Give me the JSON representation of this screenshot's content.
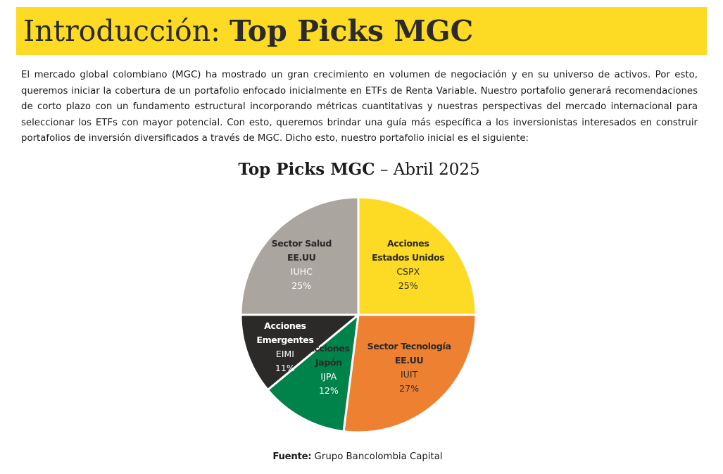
{
  "header": {
    "title_light": "Introducción:",
    "title_bold": "Top Picks MGC"
  },
  "intro_text": "El mercado global colombiano (MGC) ha mostrado un gran crecimiento en volumen de negociación y en su universo de activos. Por esto, queremos iniciar la cobertura de un portafolio enfocado inicialmente en ETFs de Renta Variable. Nuestro portafolio generará recomendaciones de corto plazo con un fundamento estructural incorporando métricas cuantitativas y nuestras perspectivas del mercado internacional para seleccionar los ETFs con mayor potencial. Con esto, queremos brindar una guía más específica a los inversionistas interesados en construir portafolios de inversión diversificados a través de MGC. Dicho esto, nuestro portafolio inicial es el siguiente:",
  "chart_data": {
    "type": "pie",
    "title_bold": "Top Picks MGC",
    "title_light": " – Abril 2025",
    "slices": [
      {
        "name_lines": [
          "Acciones",
          "Estados Unidos"
        ],
        "ticker": "CSPX",
        "value": 25,
        "value_label": "25%",
        "color": "#fdda24",
        "label_color": "#2a2a2a",
        "ticker_color": "#2a2a2a"
      },
      {
        "name_lines": [
          "Sector Tecnología",
          "EE.UU"
        ],
        "ticker": "IUIT",
        "value": 27,
        "value_label": "27%",
        "color": "#ed8131",
        "label_color": "#2a2a2a",
        "ticker_color": "#2a2a2a"
      },
      {
        "name_lines": [
          "Acciones",
          "Japón"
        ],
        "ticker": "IJPA",
        "value": 12,
        "value_label": "12%",
        "color": "#00834a",
        "label_color": "#2a2a2a",
        "ticker_color": "#ffffff"
      },
      {
        "name_lines": [
          "Acciones",
          "Emergentes"
        ],
        "ticker": "EIMI",
        "value": 11,
        "value_label": "11%",
        "color": "#2c2a29",
        "label_color": "#ffffff",
        "ticker_color": "#ffffff"
      },
      {
        "name_lines": [
          "Sector Salud",
          "EE.UU"
        ],
        "ticker": "IUHC",
        "value": 25,
        "value_label": "25%",
        "color": "#aaa59e",
        "label_color": "#2a2a2a",
        "ticker_color": "#ffffff"
      }
    ],
    "start_angle_deg": 0,
    "direction": "clockwise"
  },
  "source": {
    "label": "Fuente:",
    "text": " Grupo Bancolombia Capital"
  }
}
